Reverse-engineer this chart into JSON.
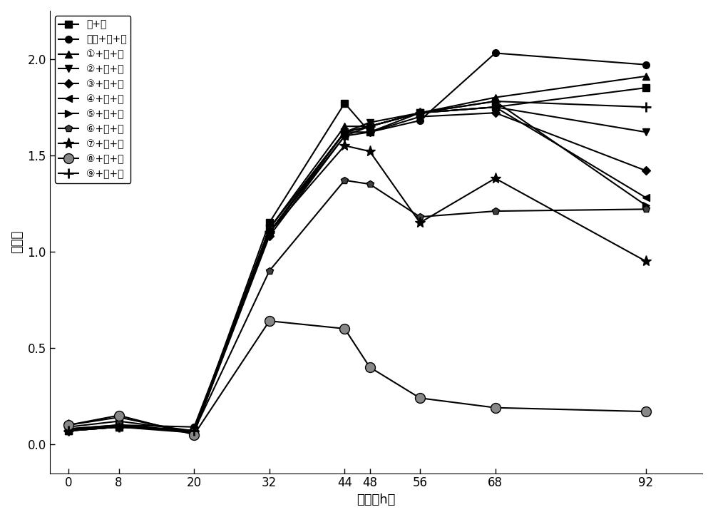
{
  "x": [
    0,
    8,
    20,
    32,
    44,
    48,
    56,
    68,
    92
  ],
  "series": [
    {
      "label": "培+浸",
      "marker": "s",
      "markersize": 7,
      "color": "#000000",
      "linewidth": 1.5,
      "markerfacecolor": "#000000",
      "markeredgewidth": 1.0,
      "y": [
        0.07,
        0.09,
        0.07,
        1.15,
        1.77,
        1.62,
        1.72,
        1.75,
        1.85
      ]
    },
    {
      "label": "原液+培+浸",
      "marker": "o",
      "markersize": 7,
      "color": "#000000",
      "linewidth": 1.5,
      "markerfacecolor": "#000000",
      "markeredgewidth": 1.0,
      "y": [
        0.08,
        0.1,
        0.09,
        1.1,
        1.62,
        1.62,
        1.68,
        2.03,
        1.97
      ]
    },
    {
      "label": "①+培+浸",
      "marker": "^",
      "markersize": 7,
      "color": "#000000",
      "linewidth": 1.5,
      "markerfacecolor": "#000000",
      "markeredgewidth": 1.0,
      "y": [
        0.07,
        0.09,
        0.07,
        1.12,
        1.65,
        1.65,
        1.72,
        1.8,
        1.91
      ]
    },
    {
      "label": "②+培+浸",
      "marker": "v",
      "markersize": 7,
      "color": "#000000",
      "linewidth": 1.5,
      "markerfacecolor": "#000000",
      "markeredgewidth": 1.0,
      "y": [
        0.08,
        0.09,
        0.07,
        1.1,
        1.62,
        1.67,
        1.72,
        1.75,
        1.62
      ]
    },
    {
      "label": "③+培+浸",
      "marker": "D",
      "markersize": 6,
      "color": "#000000",
      "linewidth": 1.5,
      "markerfacecolor": "#000000",
      "markeredgewidth": 1.0,
      "y": [
        0.07,
        0.09,
        0.06,
        1.08,
        1.6,
        1.62,
        1.7,
        1.72,
        1.42
      ]
    },
    {
      "label": "④+培+浸",
      "marker": "<",
      "markersize": 7,
      "color": "#000000",
      "linewidth": 1.5,
      "markerfacecolor": "#000000",
      "markeredgewidth": 1.0,
      "y": [
        0.07,
        0.1,
        0.06,
        1.1,
        1.6,
        1.65,
        1.72,
        1.75,
        1.28
      ]
    },
    {
      "label": "⑤+培+浸",
      "marker": ">",
      "markersize": 7,
      "color": "#000000",
      "linewidth": 1.5,
      "markerfacecolor": "#000000",
      "markeredgewidth": 1.0,
      "y": [
        0.08,
        0.1,
        0.07,
        1.12,
        1.62,
        1.65,
        1.72,
        1.78,
        1.24
      ]
    },
    {
      "label": "⑥+培+浸",
      "marker": "p",
      "markersize": 7,
      "color": "#000000",
      "linewidth": 1.5,
      "markerfacecolor": "#404040",
      "markeredgewidth": 1.0,
      "y": [
        0.09,
        0.12,
        0.07,
        0.9,
        1.37,
        1.35,
        1.18,
        1.21,
        1.22
      ]
    },
    {
      "label": "⑦+培+浸",
      "marker": "*",
      "markersize": 11,
      "color": "#000000",
      "linewidth": 1.5,
      "markerfacecolor": "#000000",
      "markeredgewidth": 1.0,
      "y": [
        0.1,
        0.14,
        0.06,
        1.1,
        1.55,
        1.52,
        1.15,
        1.38,
        0.95
      ]
    },
    {
      "label": "⑧+培+浸",
      "marker": "o",
      "markersize": 10,
      "color": "#000000",
      "linewidth": 1.5,
      "markerfacecolor": "#888888",
      "markeredgewidth": 1.0,
      "y": [
        0.1,
        0.15,
        0.05,
        0.64,
        0.6,
        0.4,
        0.24,
        0.19,
        0.17
      ]
    },
    {
      "label": "⑨+培+浸",
      "marker": "+",
      "markersize": 10,
      "color": "#000000",
      "linewidth": 1.5,
      "markerfacecolor": "#000000",
      "markeredgewidth": 2.0,
      "y": [
        0.07,
        0.09,
        0.07,
        1.1,
        1.62,
        1.65,
        1.72,
        1.78,
        1.75
      ]
    }
  ],
  "xlabel": "时间（h）",
  "ylabel": "吸光度",
  "xticks": [
    0,
    8,
    20,
    32,
    44,
    48,
    56,
    68,
    92
  ],
  "ytick_values": [
    0.0,
    0.5,
    1.0,
    1.5,
    2.0
  ],
  "ytick_labels": [
    "0.0",
    "0.5",
    "1.0",
    "1.5",
    "2.0"
  ],
  "ylim": [
    -0.15,
    2.25
  ],
  "xlim": [
    -3,
    101
  ],
  "background_color": "#ffffff",
  "legend_fontsize": 10,
  "axis_label_fontsize": 13,
  "tick_fontsize": 12
}
